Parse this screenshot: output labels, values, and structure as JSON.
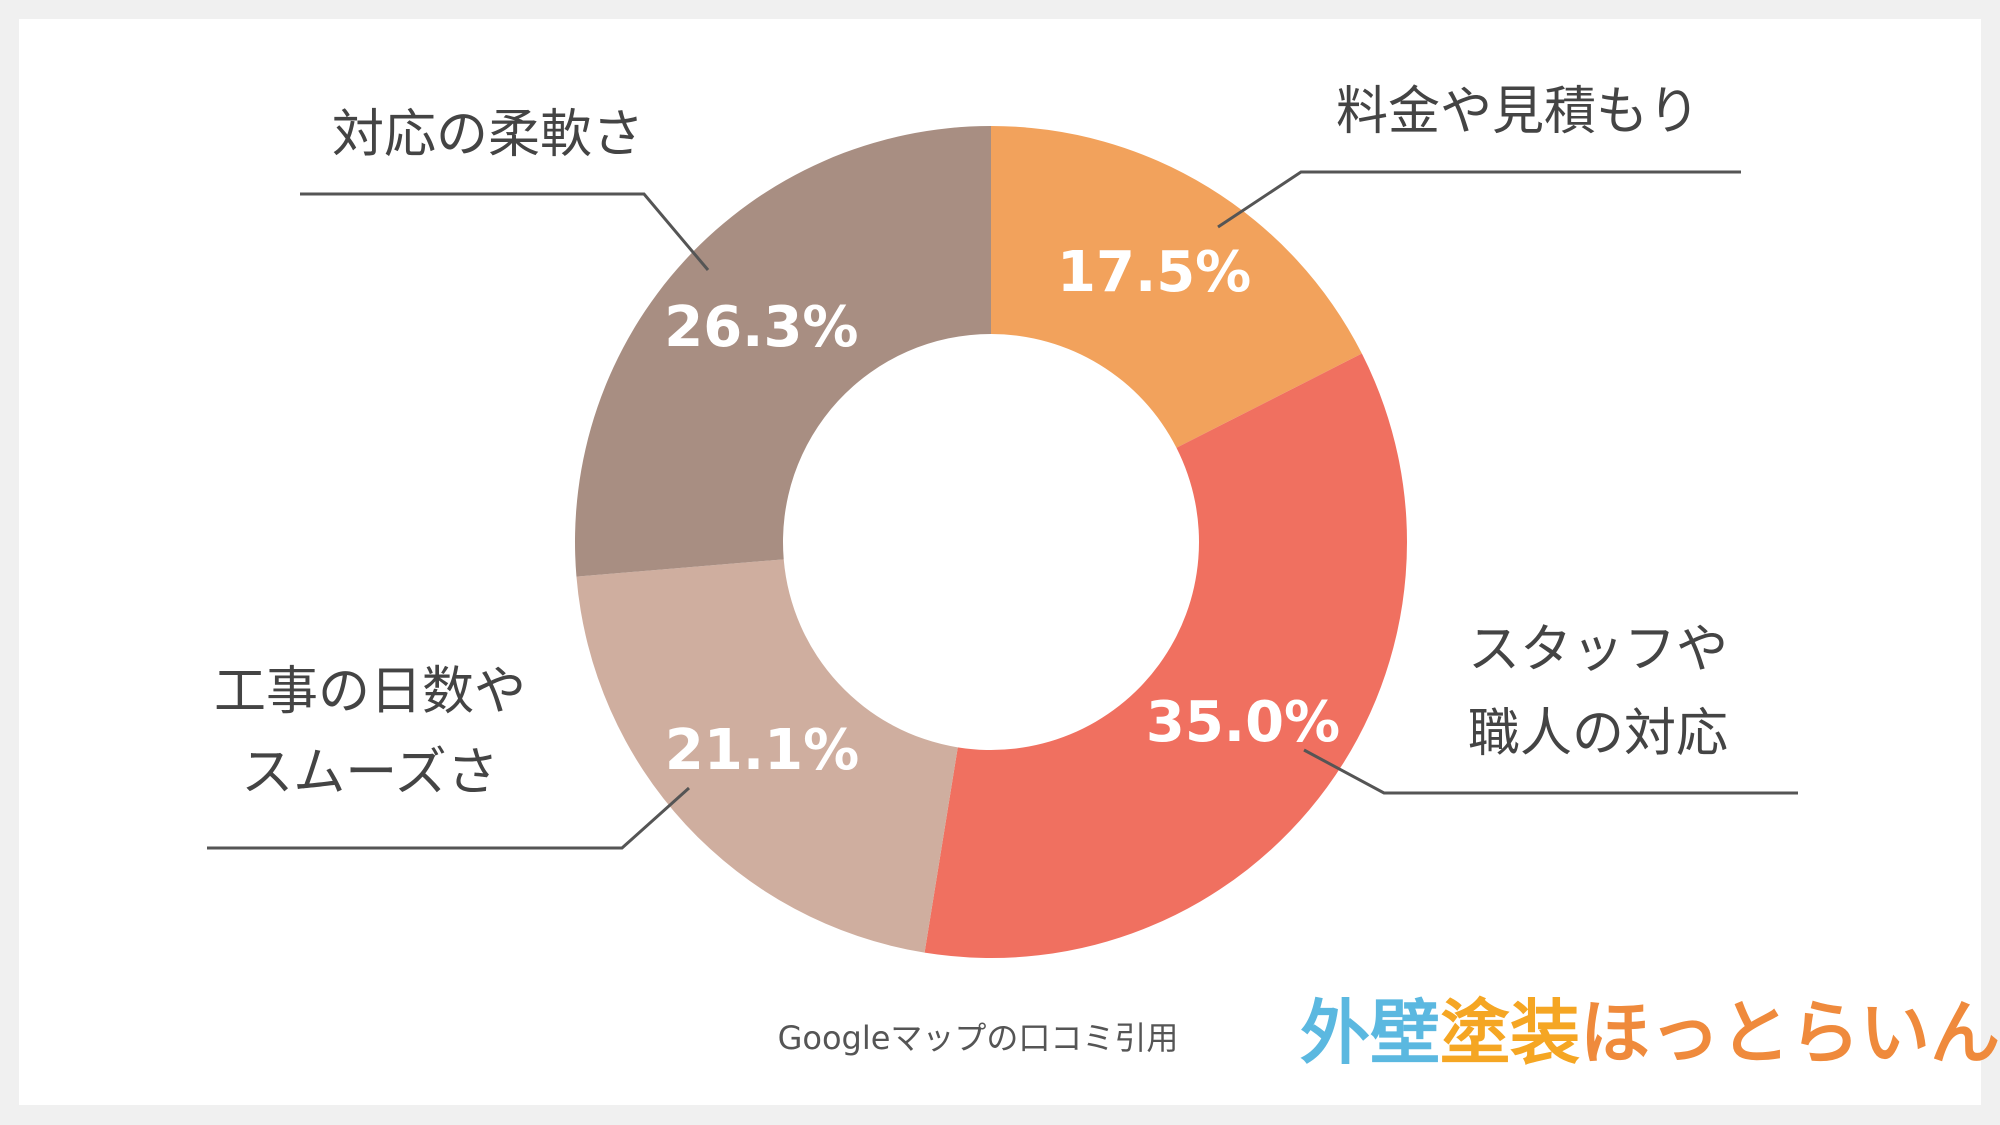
{
  "chart_data": {
    "type": "donut",
    "categories": [
      [
        "料金や見積もり"
      ],
      [
        "スタッフや",
        "職人の対応"
      ],
      [
        "工事の日数や",
        "スムーズさ"
      ],
      [
        "対応の柔軟さ"
      ]
    ],
    "values": [
      17.5,
      35.0,
      21.1,
      26.3
    ],
    "value_labels": [
      "17.5%",
      "35.0%",
      "21.1%",
      "26.3%"
    ],
    "colors": [
      "#f2a25c",
      "#f07060",
      "#cfae9f",
      "#a88e82"
    ],
    "source": "Googleマップの口コミ引用"
  },
  "brand": {
    "parts": [
      "外壁",
      "塗装",
      "ほっとらいん"
    ]
  }
}
